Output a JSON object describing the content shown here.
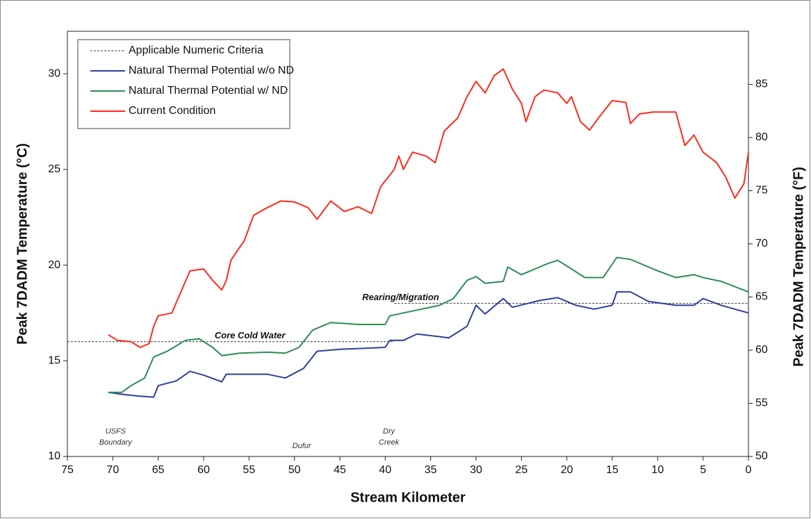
{
  "chart_data": {
    "type": "line",
    "x_label": "Stream Kilometer",
    "y_label": "Peak 7DADM Temperature (°C)",
    "y2_label": "Peak 7DADM Temperature (°F)",
    "xlim": [
      75,
      0
    ],
    "xticks": [
      75,
      70,
      65,
      60,
      55,
      50,
      45,
      40,
      35,
      30,
      25,
      20,
      15,
      10,
      5,
      0
    ],
    "ylim": [
      10,
      32.22
    ],
    "yticks": [
      10,
      15,
      20,
      25,
      30
    ],
    "y2lim": [
      50,
      90
    ],
    "y2ticks": [
      50,
      55,
      60,
      65,
      70,
      75,
      80,
      85
    ],
    "grid": false,
    "legend": "upper left",
    "series": [
      {
        "name": "Applicable Numeric Criteria",
        "color": "#333333",
        "dashed": true,
        "x": [
          75,
          39,
          39,
          39,
          0
        ],
        "values": [
          16,
          16,
          null,
          18,
          18
        ]
      },
      {
        "name": "Natural Thermal Potential w/o ND",
        "color": "#2e3f9a",
        "x": [
          70.5,
          69,
          67,
          65.5,
          65,
          63,
          61.5,
          60,
          58,
          57.5,
          53,
          51,
          49,
          47.5,
          45,
          40,
          39.5,
          38,
          36.5,
          33,
          31,
          30,
          29,
          27,
          26,
          23,
          21,
          19,
          17,
          15,
          14.5,
          13,
          11,
          8,
          6,
          5,
          3,
          0
        ],
        "values": [
          13.35,
          13.25,
          13.15,
          13.1,
          13.7,
          13.95,
          14.45,
          14.25,
          13.9,
          14.3,
          14.3,
          14.1,
          14.6,
          15.5,
          15.6,
          15.7,
          16.07,
          16.07,
          16.4,
          16.2,
          16.8,
          17.9,
          17.45,
          18.25,
          17.8,
          18.15,
          18.3,
          17.9,
          17.7,
          17.9,
          18.6,
          18.6,
          18.1,
          17.9,
          17.9,
          18.25,
          17.9,
          17.5
        ]
      },
      {
        "name": "Natural Thermal Potential w/ ND",
        "color": "#2e8b57",
        "x": [
          70.5,
          69,
          68,
          66.5,
          65.5,
          64,
          62,
          60.5,
          59,
          58,
          56,
          53,
          51,
          49.5,
          48,
          46,
          43,
          40,
          39.5,
          38,
          34,
          32.5,
          31,
          30,
          29,
          27,
          26.5,
          25,
          22,
          21,
          18,
          16,
          14.5,
          13,
          10,
          8,
          6,
          5,
          3,
          0
        ],
        "values": [
          13.35,
          13.35,
          13.7,
          14.1,
          15.2,
          15.5,
          16.07,
          16.15,
          15.7,
          15.27,
          15.4,
          15.45,
          15.4,
          15.7,
          16.6,
          17.0,
          16.9,
          16.9,
          17.35,
          17.5,
          17.9,
          18.25,
          19.2,
          19.4,
          19.05,
          19.15,
          19.9,
          19.5,
          20.1,
          20.25,
          19.35,
          19.35,
          20.4,
          20.3,
          19.7,
          19.35,
          19.5,
          19.35,
          19.15,
          18.6
        ]
      },
      {
        "name": "Current Condition",
        "color": "#ff2a1a",
        "x": [
          70.5,
          69.5,
          68,
          67,
          66,
          65.5,
          65,
          63.5,
          62.5,
          61.5,
          60,
          59,
          58,
          57.5,
          57,
          55.5,
          54.5,
          53,
          51.5,
          50,
          48.5,
          47.5,
          46,
          44.5,
          43,
          41.5,
          40.5,
          39,
          38.5,
          38,
          37,
          35.5,
          34.5,
          33.5,
          32,
          31,
          30,
          29,
          28,
          27,
          26,
          25,
          24.5,
          23.5,
          22.5,
          21,
          20,
          19.5,
          18.5,
          17.5,
          16.5,
          15,
          13.5,
          13,
          12,
          10.5,
          8,
          7,
          6,
          5,
          3.5,
          2.5,
          1.5,
          0.5,
          0
        ],
        "values": [
          16.36,
          16.07,
          16.0,
          15.7,
          15.9,
          16.8,
          17.35,
          17.5,
          18.6,
          19.7,
          19.8,
          19.2,
          18.7,
          19.2,
          20.25,
          21.3,
          22.6,
          23.0,
          23.35,
          23.3,
          23.0,
          22.4,
          23.35,
          22.8,
          23.05,
          22.7,
          24.1,
          25.0,
          25.7,
          25.0,
          25.9,
          25.7,
          25.35,
          27.0,
          27.7,
          28.8,
          29.6,
          29.0,
          29.9,
          30.25,
          29.2,
          28.45,
          27.5,
          28.8,
          29.15,
          29.0,
          28.45,
          28.8,
          27.5,
          27.05,
          27.7,
          28.6,
          28.5,
          27.4,
          27.9,
          28.0,
          28.0,
          26.25,
          26.8,
          25.9,
          25.35,
          24.6,
          23.5,
          24.25,
          25.9
        ]
      }
    ],
    "annotations": [
      {
        "lines": [
          "Core Cold Water"
        ],
        "x": 54.9,
        "y": 16.3,
        "style": "label"
      },
      {
        "lines": [
          "Rearing/Migration"
        ],
        "x": 38.3,
        "y": 18.3,
        "style": "label"
      },
      {
        "lines": [
          "USFS",
          "Boundary"
        ],
        "x": 69.7,
        "y": 11.3,
        "style": "place"
      },
      {
        "lines": [
          "Dufur"
        ],
        "x": 49.2,
        "y": 10.55,
        "style": "place"
      },
      {
        "lines": [
          "Dry",
          "Creek"
        ],
        "x": 39.6,
        "y": 11.3,
        "style": "place"
      }
    ]
  }
}
